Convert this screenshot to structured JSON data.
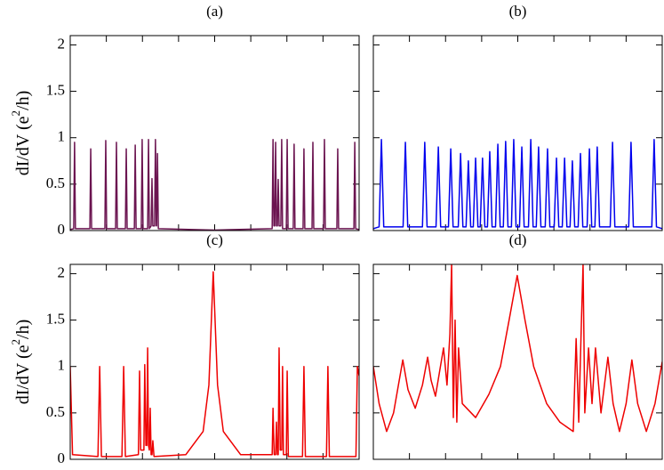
{
  "chart_data": [
    {
      "type": "line",
      "title": "(a)",
      "ylabel": [
        "dI/dV (e",
        "2",
        "/h)"
      ],
      "show_ytick_labels": true,
      "xlim": [
        0,
        100
      ],
      "ylim": [
        0,
        2.1
      ],
      "xticks": [
        0,
        12.5,
        25,
        37.5,
        50,
        62.5,
        75,
        87.5,
        100
      ],
      "yticks": [
        0,
        0.5,
        1,
        1.5,
        2
      ],
      "x": [
        0,
        1.2,
        1.5,
        1.8,
        6.8,
        7.1,
        7.4,
        12.0,
        12.3,
        12.6,
        15.7,
        16.0,
        16.3,
        19.1,
        19.4,
        19.7,
        22.2,
        22.5,
        22.8,
        24.6,
        24.9,
        25.2,
        26.8,
        27.1,
        27.4,
        28.0,
        28.3,
        28.6,
        29.2,
        29.5,
        29.8,
        29.9,
        30.2,
        30.5,
        50,
        69.9,
        70.2,
        70.5,
        70.8,
        71.1,
        71.4,
        71.7,
        72.0,
        72.3,
        72.9,
        73.2,
        73.5,
        74.8,
        75.1,
        75.4,
        77.2,
        77.5,
        77.8,
        80.6,
        80.9,
        81.2,
        83.7,
        84.0,
        84.3,
        87.7,
        88.0,
        88.3,
        92.3,
        92.6,
        92.9,
        98.2,
        98.5,
        98.8,
        100
      ],
      "series": [
        {
          "color": "#6b1450",
          "values": [
            0.01,
            0.02,
            0.95,
            0.02,
            0.02,
            0.88,
            0.02,
            0.02,
            0.97,
            0.02,
            0.02,
            0.95,
            0.02,
            0.02,
            0.88,
            0.02,
            0.02,
            0.92,
            0.02,
            0.02,
            0.98,
            0.02,
            0.02,
            0.98,
            0.02,
            0.05,
            0.56,
            0.05,
            0.05,
            0.98,
            0.05,
            0.05,
            0.83,
            0.02,
            0.005,
            0.02,
            0.98,
            0.05,
            0.05,
            0.95,
            0.05,
            0.05,
            0.55,
            0.05,
            0.05,
            0.98,
            0.02,
            0.02,
            0.98,
            0.02,
            0.02,
            0.93,
            0.02,
            0.02,
            0.88,
            0.02,
            0.02,
            0.95,
            0.02,
            0.02,
            0.98,
            0.02,
            0.02,
            0.88,
            0.02,
            0.02,
            0.95,
            0.02,
            0.01
          ]
        }
      ]
    },
    {
      "type": "line",
      "title": "(b)",
      "show_ytick_labels": false,
      "xlim": [
        0,
        100
      ],
      "ylim": [
        0,
        2.1
      ],
      "xticks": [
        0,
        12.5,
        25,
        37.5,
        50,
        62.5,
        75,
        87.5,
        100
      ],
      "yticks": [
        0,
        0.5,
        1,
        1.5,
        2
      ],
      "x": [
        0,
        2.0,
        2.8,
        3.6,
        10.3,
        11.1,
        11.9,
        17.0,
        17.8,
        18.6,
        21.7,
        22.5,
        23.3,
        26.0,
        26.8,
        27.6,
        29.4,
        30.2,
        31.0,
        32.1,
        32.9,
        33.7,
        34.6,
        35.4,
        36.2,
        37.0,
        37.8,
        38.6,
        39.5,
        40.3,
        41.1,
        42.3,
        43.1,
        43.9,
        45.0,
        45.8,
        46.6,
        47.8,
        48.6,
        49.4,
        50.6,
        51.4,
        52.2,
        53.7,
        54.5,
        55.3,
        56.4,
        57.2,
        58.0,
        59.5,
        60.3,
        61.1,
        62.6,
        63.4,
        64.2,
        65.4,
        66.2,
        67.0,
        68.1,
        68.9,
        69.7,
        70.9,
        71.7,
        72.5,
        74.0,
        74.8,
        75.6,
        76.7,
        77.5,
        78.3,
        82.0,
        82.8,
        83.6,
        88.4,
        89.2,
        90.0,
        96.4,
        97.2,
        98.0,
        100
      ],
      "series": [
        {
          "color": "#0000ee",
          "values": [
            0.02,
            0.04,
            0.98,
            0.04,
            0.04,
            0.95,
            0.04,
            0.04,
            0.95,
            0.04,
            0.04,
            0.9,
            0.04,
            0.04,
            0.88,
            0.04,
            0.04,
            0.83,
            0.04,
            0.04,
            0.75,
            0.04,
            0.04,
            0.78,
            0.04,
            0.04,
            0.78,
            0.04,
            0.04,
            0.85,
            0.04,
            0.04,
            0.93,
            0.04,
            0.04,
            0.96,
            0.04,
            0.04,
            0.98,
            0.04,
            0.04,
            0.9,
            0.04,
            0.04,
            0.98,
            0.04,
            0.04,
            0.9,
            0.04,
            0.04,
            0.88,
            0.04,
            0.04,
            0.78,
            0.04,
            0.04,
            0.78,
            0.04,
            0.04,
            0.75,
            0.04,
            0.04,
            0.83,
            0.04,
            0.04,
            0.88,
            0.04,
            0.04,
            0.9,
            0.04,
            0.04,
            0.95,
            0.04,
            0.04,
            0.95,
            0.04,
            0.04,
            0.98,
            0.04,
            0.02
          ]
        }
      ]
    },
    {
      "type": "line",
      "title": "(c)",
      "ylabel": [
        "dI/dV (e",
        "2",
        "/h)"
      ],
      "show_ytick_labels": true,
      "xlim": [
        0,
        100
      ],
      "ylim": [
        0,
        2.1
      ],
      "xticks": [
        0,
        12.5,
        25,
        37.5,
        50,
        62.5,
        75,
        87.5,
        100
      ],
      "yticks": [
        0,
        0.5,
        1,
        1.5,
        2
      ],
      "x": [
        0,
        0.8,
        9.6,
        10.2,
        10.8,
        17.9,
        18.5,
        19.1,
        23.6,
        24.0,
        24.4,
        25.5,
        25.8,
        26.2,
        26.5,
        26.8,
        27.1,
        27.4,
        27.7,
        28.0,
        28.3,
        28.6,
        29.0,
        40,
        46,
        48,
        49.5,
        51,
        53,
        59,
        69.9,
        70.2,
        70.6,
        71.1,
        71.4,
        71.7,
        72.0,
        72.3,
        72.7,
        73.2,
        73.5,
        73.8,
        74.8,
        75.1,
        75.5,
        80.4,
        80.9,
        81.4,
        88.7,
        89.2,
        89.7,
        98.9,
        99.4,
        100
      ],
      "series": [
        {
          "color": "#ee0000",
          "values": [
            1.0,
            0.05,
            0.03,
            1.0,
            0.03,
            0.03,
            1.0,
            0.03,
            0.05,
            0.95,
            0.1,
            0.1,
            1.02,
            0.15,
            0.15,
            1.2,
            0.15,
            0.1,
            0.55,
            0.05,
            0.05,
            0.2,
            0.03,
            0.05,
            0.3,
            0.8,
            2.02,
            0.8,
            0.3,
            0.05,
            0.05,
            0.55,
            0.05,
            0.05,
            0.4,
            0.05,
            0.05,
            1.2,
            0.1,
            0.1,
            1.0,
            0.05,
            0.05,
            0.95,
            0.03,
            0.03,
            1.0,
            0.03,
            0.03,
            1.0,
            0.03,
            0.03,
            1.0,
            0.9
          ]
        }
      ]
    },
    {
      "type": "line",
      "title": "(d)",
      "show_ytick_labels": false,
      "xlim": [
        0,
        100
      ],
      "ylim": [
        0,
        2.1
      ],
      "xticks": [
        0,
        12.5,
        25,
        37.5,
        50,
        62.5,
        75,
        87.5,
        100
      ],
      "yticks": [
        0,
        0.5,
        1,
        1.5,
        2
      ],
      "x": [
        0,
        2,
        4.6,
        7,
        10.2,
        12,
        14.5,
        17,
        18.8,
        20,
        21.5,
        24.3,
        25.5,
        26.5,
        27.1,
        27.7,
        28.3,
        28.9,
        29.5,
        30.8,
        35.4,
        40,
        44,
        47,
        49.8,
        52.5,
        55.5,
        60,
        64.6,
        69.2,
        70.2,
        71.1,
        72.0,
        72.6,
        73.2,
        74.5,
        75.7,
        76.9,
        78.8,
        81.2,
        83,
        85.2,
        87.5,
        89.5,
        91.5,
        94.5,
        97.5,
        100
      ],
      "series": [
        {
          "color": "#ee0000",
          "values": [
            1.0,
            0.6,
            0.3,
            0.5,
            1.07,
            0.75,
            0.55,
            0.8,
            1.1,
            0.85,
            0.68,
            1.2,
            0.8,
            1.35,
            2.1,
            0.45,
            1.5,
            0.4,
            1.2,
            0.6,
            0.45,
            0.7,
            1.0,
            1.5,
            1.98,
            1.5,
            1.0,
            0.6,
            0.4,
            0.3,
            1.3,
            0.4,
            1.45,
            2.1,
            0.5,
            1.2,
            0.6,
            1.2,
            0.5,
            1.1,
            0.6,
            0.3,
            0.6,
            1.07,
            0.6,
            0.3,
            0.6,
            1.05
          ]
        }
      ]
    }
  ]
}
